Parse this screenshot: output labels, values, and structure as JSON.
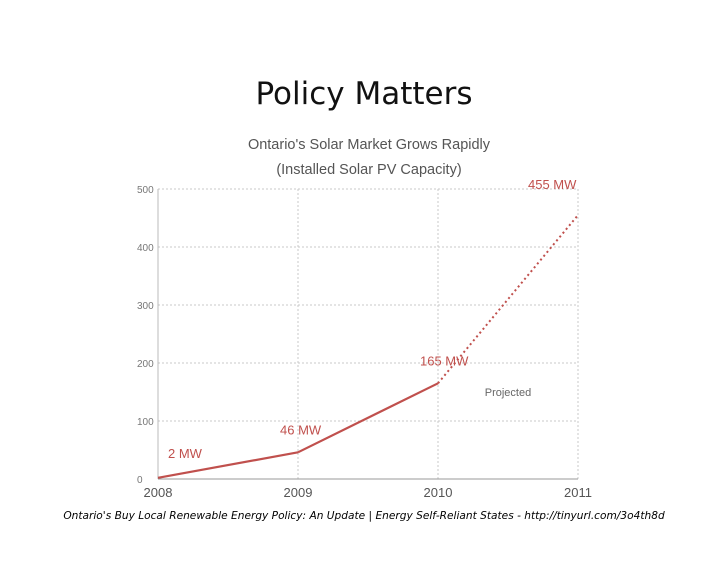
{
  "slide": {
    "title": "Policy Matters",
    "footer": "Ontario's Buy Local Renewable Energy Policy: An Update | Energy Self-Reliant States - http://tinyurl.com/3o4th8d"
  },
  "colors": {
    "line": "#c0504d",
    "label": "#c0504d",
    "grid": "#c8c8c8",
    "axis_text": "#777777",
    "title_text": "#555555"
  },
  "chart_data": {
    "type": "line",
    "title": "Ontario's Solar Market Grows Rapidly",
    "subtitle": "(Installed Solar PV Capacity)",
    "xlabel": "",
    "ylabel": "",
    "ylim": [
      0,
      500
    ],
    "yticks": [
      0,
      100,
      200,
      300,
      400,
      500
    ],
    "grid": true,
    "series": [
      {
        "name": "Installed Solar PV Capacity",
        "x": [
          "2008",
          "2009",
          "2010",
          "2011"
        ],
        "values": [
          2,
          46,
          165,
          455
        ],
        "data_labels": [
          "2 MW",
          "46 MW",
          "165 MW",
          "455 MW"
        ],
        "projected_from_index": 2
      }
    ],
    "annotations": [
      {
        "text": "Projected",
        "x": 2010.5,
        "y": 150
      }
    ]
  }
}
